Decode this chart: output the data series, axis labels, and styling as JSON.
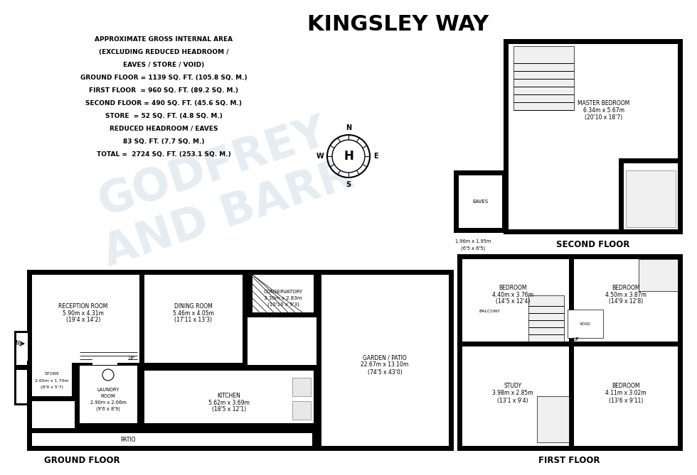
{
  "title": "KINGSLEY WAY",
  "info_text": [
    "APPROXIMATE GROSS INTERNAL AREA",
    "(EXCLUDING REDUCED HEADROOM /",
    "EAVES / STORE / VOID)",
    "GROUND FLOOR = 1139 SQ. FT. (105.8 SQ. M.)",
    "FIRST FLOOR  = 960 SQ. FT. (89.2 SQ. M.)",
    "SECOND FLOOR = 490 SQ. FT. (45.6 SQ. M.)",
    "STORE  = 52 SQ. FT. (4.8 SQ. M.)",
    "REDUCED HEADROOM / EAVES",
    "83 SQ. FT. (7.7 SQ. M.)",
    "TOTAL =  2724 SQ. FT. (253.1 SQ. M.)"
  ]
}
